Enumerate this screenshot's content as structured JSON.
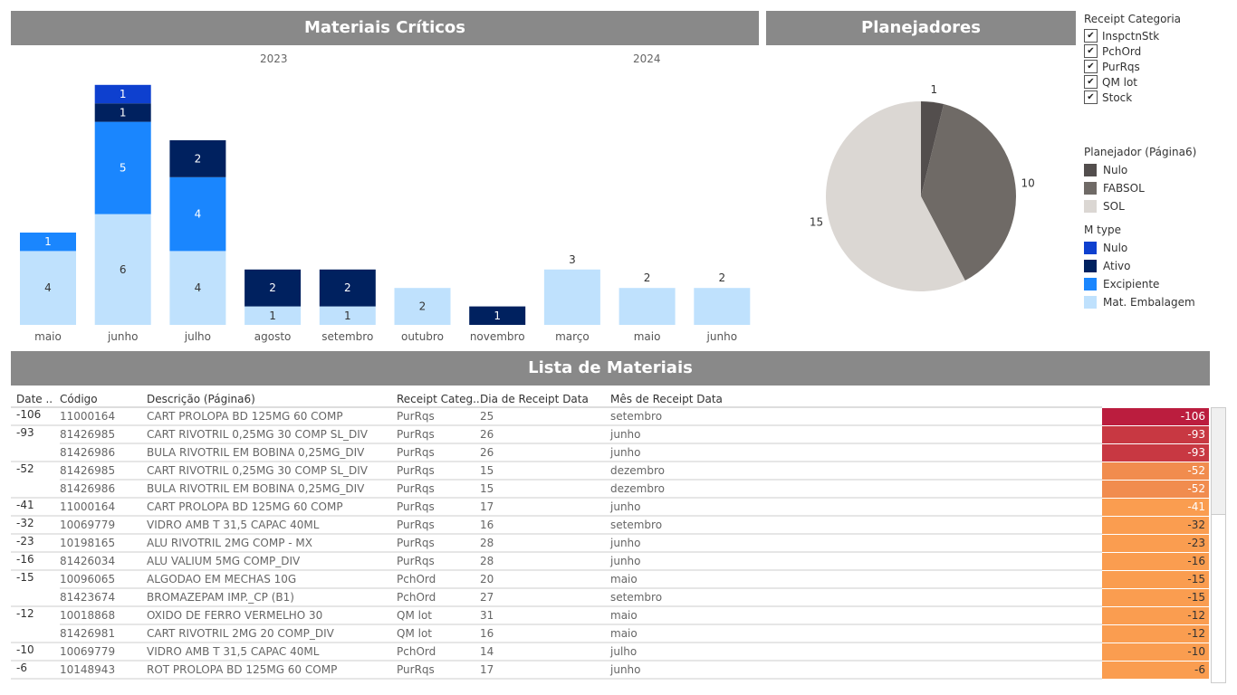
{
  "titles": {
    "materiais": "Materiais Críticos",
    "planejadores": "Planejadores",
    "lista": "Lista de Materiais"
  },
  "years": [
    "2023",
    "2024"
  ],
  "colors": {
    "Nulo": "#0e40cf",
    "Ativo": "#00215f",
    "Excipiente": "#1a86fe",
    "Mat. Embalagem": "#bfe1fd",
    "pie_Nulo": "#534e4d",
    "pie_FABSOL": "#6f6a66",
    "pie_SOL": "#dbd7d3"
  },
  "chart_data": [
    {
      "type": "bar",
      "stacked": true,
      "title": "Materiais Críticos",
      "categories": [
        "maio",
        "junho",
        "julho",
        "agosto",
        "setembro",
        "outubro",
        "novembro",
        "março",
        "maio",
        "junho"
      ],
      "category_years": [
        "2023",
        "2023",
        "2023",
        "2023",
        "2023",
        "2023",
        "2023",
        "2024",
        "2024",
        "2024"
      ],
      "series": [
        {
          "name": "Mat. Embalagem",
          "values": [
            4,
            6,
            4,
            1,
            1,
            2,
            0,
            3,
            2,
            2
          ]
        },
        {
          "name": "Excipiente",
          "values": [
            1,
            5,
            4,
            0,
            0,
            0,
            0,
            0,
            0,
            0
          ]
        },
        {
          "name": "Ativo",
          "values": [
            0,
            1,
            2,
            2,
            2,
            0,
            1,
            0,
            0,
            0
          ]
        },
        {
          "name": "Nulo",
          "values": [
            0,
            1,
            0,
            0,
            0,
            0,
            0,
            0,
            0,
            0
          ]
        }
      ]
    },
    {
      "type": "pie",
      "title": "Planejadores",
      "slices": [
        {
          "name": "Nulo",
          "value": 1
        },
        {
          "name": "FABSOL",
          "value": 10
        },
        {
          "name": "SOL",
          "value": 15
        }
      ]
    }
  ],
  "filters": {
    "title": "Receipt Categoria",
    "items": [
      {
        "label": "InspctnStk",
        "checked": true
      },
      {
        "label": "PchOrd",
        "checked": true
      },
      {
        "label": "PurRqs",
        "checked": true
      },
      {
        "label": "QM lot",
        "checked": true
      },
      {
        "label": "Stock",
        "checked": true
      }
    ]
  },
  "legend_planejador": {
    "title": "Planejador (Página6)",
    "items": [
      "Nulo",
      "FABSOL",
      "SOL"
    ]
  },
  "legend_mtype": {
    "title": "M  type",
    "items": [
      "Nulo",
      "Ativo",
      "Excipiente",
      "Mat. Embalagem"
    ]
  },
  "table": {
    "headers": [
      "Date ..",
      "Código",
      "Descrição (Página6)",
      "Receipt Categ..",
      "Dia de Receipt Data",
      "Mês de Receipt Data"
    ],
    "rows": [
      [
        "-106",
        "11000164",
        "CART PROLOPA BD 125MG 60 COMP",
        "PurRqs",
        "25",
        "setembro"
      ],
      [
        "-93",
        "81426985",
        "CART RIVOTRIL 0,25MG 30 COMP SL_DIV",
        "PurRqs",
        "26",
        "junho"
      ],
      [
        "",
        "81426986",
        "BULA RIVOTRIL EM BOBINA 0,25MG_DIV",
        "PurRqs",
        "26",
        "junho"
      ],
      [
        "-52",
        "81426985",
        "CART RIVOTRIL 0,25MG 30 COMP SL_DIV",
        "PurRqs",
        "15",
        "dezembro"
      ],
      [
        "",
        "81426986",
        "BULA RIVOTRIL EM BOBINA 0,25MG_DIV",
        "PurRqs",
        "15",
        "dezembro"
      ],
      [
        "-41",
        "11000164",
        "CART PROLOPA BD 125MG 60 COMP",
        "PurRqs",
        "17",
        "junho"
      ],
      [
        "-32",
        "10069779",
        "VIDRO AMB T 31,5 CAPAC 40ML",
        "PurRqs",
        "16",
        "setembro"
      ],
      [
        "-23",
        "10198165",
        "ALU RIVOTRIL 2MG COMP - MX",
        "PurRqs",
        "28",
        "junho"
      ],
      [
        "-16",
        "81426034",
        "ALU VALIUM 5MG COMP_DIV",
        "PurRqs",
        "28",
        "junho"
      ],
      [
        "-15",
        "10096065",
        "ALGODAO EM MECHAS  10G",
        "PchOrd",
        "20",
        "maio"
      ],
      [
        "",
        "81423674",
        "BROMAZEPAM IMP._CP (B1)",
        "PchOrd",
        "27",
        "setembro"
      ],
      [
        "-12",
        "10018868",
        "OXIDO DE FERRO VERMELHO 30",
        "QM lot",
        "31",
        "maio"
      ],
      [
        "",
        "81426981",
        "CART RIVOTRIL 2MG 20 COMP_DIV",
        "QM lot",
        "16",
        "maio"
      ],
      [
        "-10",
        "10069779",
        "VIDRO AMB T 31,5 CAPAC 40ML",
        "PchOrd",
        "14",
        "julho"
      ],
      [
        "-6",
        "10148943",
        "ROT PROLOPA BD 125MG 60 COMP",
        "PurRqs",
        "17",
        "junho"
      ]
    ],
    "heat_values": [
      "-106",
      "-93",
      "-93",
      "-52",
      "-52",
      "-41",
      "-32",
      "-23",
      "-16",
      "-15",
      "-15",
      "-12",
      "-12",
      "-10",
      "-6"
    ]
  }
}
